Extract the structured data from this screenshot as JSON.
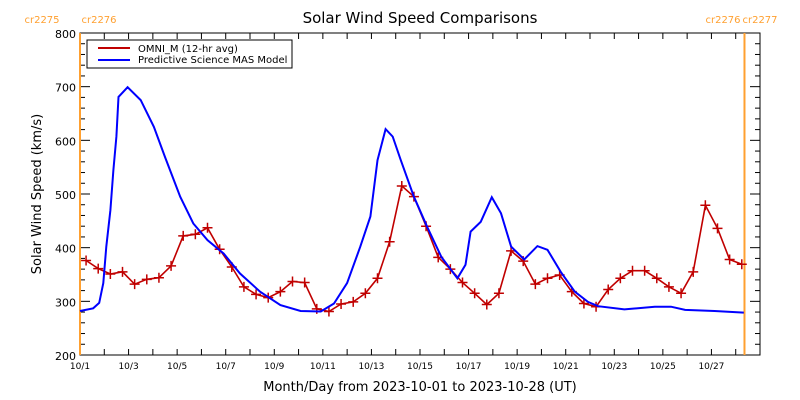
{
  "chart_data": {
    "type": "line",
    "title": "Solar Wind Speed Comparisons",
    "xlabel": "Month/Day from 2023-10-01 to 2023-10-28 (UT)",
    "ylabel": "Solar Wind Speed (km/s)",
    "xlim": [
      "2023-10-01T00:00Z",
      "2023-10-29T00:00Z"
    ],
    "ylim": [
      200,
      800
    ],
    "y_ticks": [
      "200",
      "300",
      "400",
      "500",
      "600",
      "700",
      "800"
    ],
    "x_ticks": [
      {
        "date": "2023-10-01",
        "label": "10/1"
      },
      {
        "date": "2023-10-03",
        "label": "10/3"
      },
      {
        "date": "2023-10-05",
        "label": "10/5"
      },
      {
        "date": "2023-10-07",
        "label": "10/7"
      },
      {
        "date": "2023-10-09",
        "label": "10/9"
      },
      {
        "date": "2023-10-11",
        "label": "10/11"
      },
      {
        "date": "2023-10-13",
        "label": "10/13"
      },
      {
        "date": "2023-10-15",
        "label": "10/15"
      },
      {
        "date": "2023-10-17",
        "label": "10/17"
      },
      {
        "date": "2023-10-19",
        "label": "10/19"
      },
      {
        "date": "2023-10-21",
        "label": "10/21"
      },
      {
        "date": "2023-10-23",
        "label": "10/23"
      },
      {
        "date": "2023-10-25",
        "label": "10/25"
      },
      {
        "date": "2023-10-27",
        "label": "10/27"
      }
    ],
    "grid": false,
    "legend_placement": "top-left",
    "carrington_markers": [
      {
        "date": "2023-10-01T00:00Z",
        "left_label": "cr2275",
        "right_label": "cr2276",
        "position": "left"
      },
      {
        "date": "2023-10-28T08:40Z",
        "left_label": "cr2276",
        "right_label": "cr2277",
        "position": "right"
      }
    ],
    "marker_color": "#ffa030",
    "series": [
      {
        "name": "OMNI_M (12-hr avg)",
        "color": "#c00000",
        "marker": "plus",
        "x": [
          "2023-10-01T06:00Z",
          "2023-10-01T18:00Z",
          "2023-10-02T06:00Z",
          "2023-10-02T18:00Z",
          "2023-10-03T06:00Z",
          "2023-10-03T18:00Z",
          "2023-10-04T06:00Z",
          "2023-10-04T18:00Z",
          "2023-10-05T06:00Z",
          "2023-10-05T18:00Z",
          "2023-10-06T06:00Z",
          "2023-10-06T18:00Z",
          "2023-10-07T06:00Z",
          "2023-10-07T18:00Z",
          "2023-10-08T06:00Z",
          "2023-10-08T18:00Z",
          "2023-10-09T06:00Z",
          "2023-10-09T18:00Z",
          "2023-10-10T06:00Z",
          "2023-10-10T18:00Z",
          "2023-10-11T06:00Z",
          "2023-10-11T18:00Z",
          "2023-10-12T06:00Z",
          "2023-10-12T18:00Z",
          "2023-10-13T06:00Z",
          "2023-10-13T18:00Z",
          "2023-10-14T06:00Z",
          "2023-10-14T18:00Z",
          "2023-10-15T06:00Z",
          "2023-10-15T18:00Z",
          "2023-10-16T06:00Z",
          "2023-10-16T18:00Z",
          "2023-10-17T06:00Z",
          "2023-10-17T18:00Z",
          "2023-10-18T06:00Z",
          "2023-10-18T18:00Z",
          "2023-10-19T06:00Z",
          "2023-10-19T18:00Z",
          "2023-10-20T06:00Z",
          "2023-10-20T18:00Z",
          "2023-10-21T06:00Z",
          "2023-10-21T18:00Z",
          "2023-10-22T06:00Z",
          "2023-10-22T18:00Z",
          "2023-10-23T06:00Z",
          "2023-10-23T18:00Z",
          "2023-10-24T06:00Z",
          "2023-10-24T18:00Z",
          "2023-10-25T06:00Z",
          "2023-10-25T18:00Z",
          "2023-10-26T06:00Z",
          "2023-10-26T18:00Z",
          "2023-10-27T06:00Z",
          "2023-10-27T18:00Z",
          "2023-10-28T06:00Z"
        ],
        "values": [
          376,
          361,
          351,
          355,
          332,
          341,
          344,
          366,
          422,
          425,
          437,
          397,
          364,
          327,
          313,
          307,
          318,
          337,
          335,
          286,
          281,
          295,
          299,
          315,
          343,
          411,
          515,
          495,
          440,
          382,
          360,
          335,
          315,
          294,
          315,
          394,
          375,
          332,
          343,
          349,
          318,
          296,
          290,
          322,
          343,
          357,
          357,
          343,
          327,
          315,
          355,
          479,
          436,
          378,
          369
        ]
      },
      {
        "name": "Predictive Science MAS Model",
        "color": "#0000ff",
        "x": [
          "2023-10-01T00:00Z",
          "2023-10-01T13:00Z",
          "2023-10-01T19:00Z",
          "2023-10-01T23:00Z",
          "2023-10-02T02:00Z",
          "2023-10-02T06:00Z",
          "2023-10-02T09:00Z",
          "2023-10-02T12:00Z",
          "2023-10-02T14:00Z",
          "2023-10-02T23:00Z",
          "2023-10-03T12:00Z",
          "2023-10-04T01:00Z",
          "2023-10-04T12:00Z",
          "2023-10-05T03:00Z",
          "2023-10-05T16:00Z",
          "2023-10-06T06:00Z",
          "2023-10-06T22:00Z",
          "2023-10-07T14:00Z",
          "2023-10-08T10:00Z",
          "2023-10-09T06:00Z",
          "2023-10-10T02:00Z",
          "2023-10-10T22:00Z",
          "2023-10-11T11:00Z",
          "2023-10-12T00:00Z",
          "2023-10-12T13:00Z",
          "2023-10-12T23:00Z",
          "2023-10-13T06:00Z",
          "2023-10-13T14:00Z",
          "2023-10-13T21:00Z",
          "2023-10-14T05:00Z",
          "2023-10-14T18:00Z",
          "2023-10-15T07:00Z",
          "2023-10-15T21:00Z",
          "2023-10-16T13:00Z",
          "2023-10-16T21:00Z",
          "2023-10-17T02:00Z",
          "2023-10-17T12:00Z",
          "2023-10-17T23:00Z",
          "2023-10-18T08:00Z",
          "2023-10-18T18:00Z",
          "2023-10-19T07:00Z",
          "2023-10-19T20:00Z",
          "2023-10-20T06:00Z",
          "2023-10-20T19:00Z",
          "2023-10-21T09:00Z",
          "2023-10-21T22:00Z",
          "2023-10-22T08:00Z",
          "2023-10-23T10:00Z",
          "2023-10-24T16:00Z",
          "2023-10-25T08:00Z",
          "2023-10-25T22:00Z",
          "2023-10-27T03:00Z",
          "2023-10-28T08:00Z"
        ],
        "values": [
          282,
          287,
          297,
          334,
          402,
          470,
          545,
          607,
          681,
          699,
          675,
          625,
          569,
          495,
          445,
          414,
          389,
          352,
          318,
          293,
          282,
          281,
          296,
          334,
          402,
          458,
          563,
          621,
          607,
          563,
          495,
          439,
          383,
          343,
          368,
          430,
          448,
          494,
          464,
          402,
          378,
          403,
          396,
          355,
          318,
          299,
          291,
          285,
          290,
          290,
          284,
          282,
          279
        ]
      }
    ]
  }
}
